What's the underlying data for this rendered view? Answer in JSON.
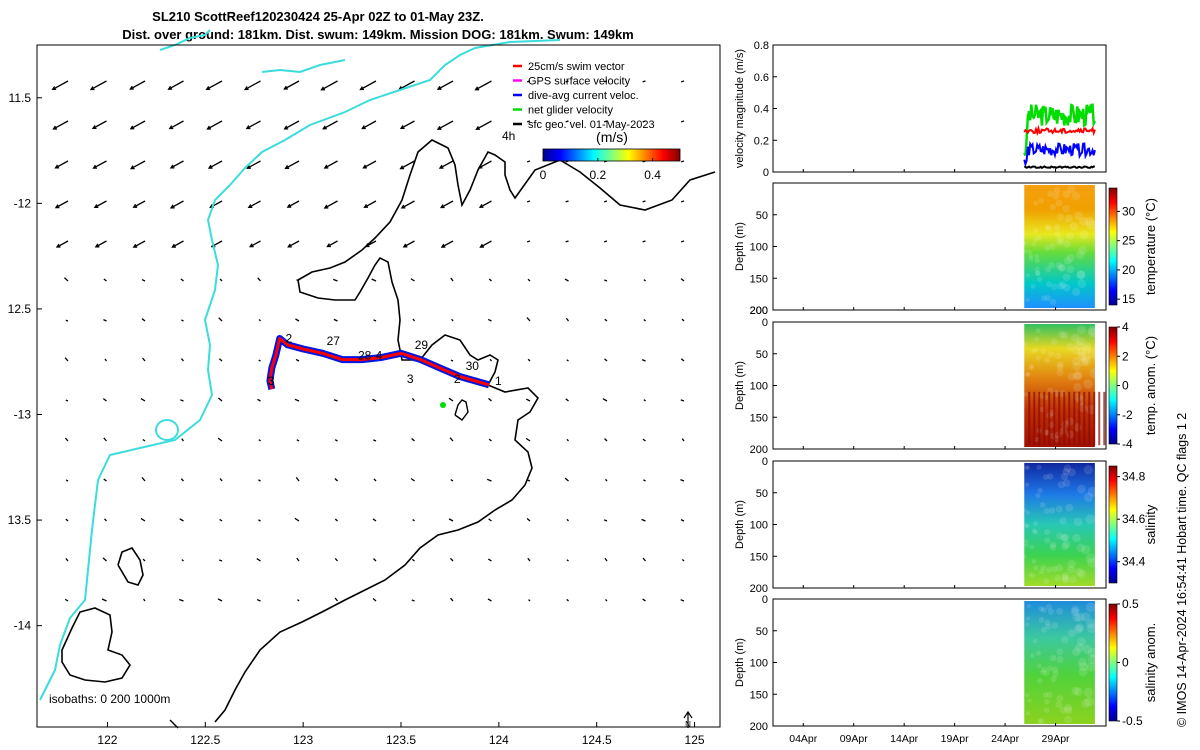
{
  "chart_data": {
    "type": "map_and_timeseries",
    "title_line1": "SL210 ScottReef120230424 25-Apr 02Z to 01-May 23Z.",
    "title_line2": "Dist. over ground: 181km. Dist. swum: 149km. Mission DOG: 181km. Swum: 149km",
    "map": {
      "xlim": [
        121.64,
        125.13
      ],
      "ylim": [
        -14.48,
        -11.25
      ],
      "xticks": [
        122,
        122.5,
        123,
        123.5,
        124,
        124.5,
        125
      ],
      "xtick_labels": [
        "122",
        "122.5",
        "123",
        "123.5",
        "124",
        "124.5",
        "125"
      ],
      "yticks": [
        -11.5,
        -12,
        -12.5,
        -13,
        -13.5,
        -14
      ],
      "ytick_labels": [
        "11.5",
        "-12",
        "12.5",
        "-13",
        "13.5",
        "-14"
      ],
      "legend": [
        {
          "label": "25cm/s swim vector",
          "color": "#ff0000"
        },
        {
          "label": "GPS surface velocity",
          "color": "#ff00ff"
        },
        {
          "label": "dive-avg current veloc.",
          "color": "#0000ff"
        },
        {
          "label": "net glider velocity",
          "color": "#00dd00"
        },
        {
          "label": "sfc geo. vel. 01-May-2023",
          "color": "#000000"
        }
      ],
      "colorbar": {
        "title": "(m/s)",
        "tick_labels": [
          "0",
          "0.2",
          "0.4"
        ],
        "range": [
          0,
          0.5
        ],
        "label_4h": "4h"
      },
      "isobath_note": "isobaths: 0   200  1000m",
      "north_label": "N",
      "track": [
        [
          122.84,
          -12.88
        ],
        [
          122.83,
          -12.84
        ],
        [
          122.84,
          -12.78
        ],
        [
          122.86,
          -12.72
        ],
        [
          122.88,
          -12.64
        ],
        [
          122.92,
          -12.67
        ],
        [
          123.0,
          -12.69
        ],
        [
          123.1,
          -12.71
        ],
        [
          123.2,
          -12.74
        ],
        [
          123.3,
          -12.74
        ],
        [
          123.4,
          -12.73
        ],
        [
          123.5,
          -12.71
        ],
        [
          123.6,
          -12.74
        ],
        [
          123.7,
          -12.78
        ],
        [
          123.8,
          -12.82
        ],
        [
          123.95,
          -12.86
        ]
      ],
      "day_labels": [
        {
          "text": "2",
          "lon": 122.91,
          "lat": -12.66
        },
        {
          "text": "27",
          "lon": 123.12,
          "lat": -12.67
        },
        {
          "text": "28",
          "lon": 123.28,
          "lat": -12.74
        },
        {
          "text": "4",
          "lon": 123.37,
          "lat": -12.74
        },
        {
          "text": "29",
          "lon": 123.57,
          "lat": -12.69
        },
        {
          "text": "30",
          "lon": 123.83,
          "lat": -12.79
        },
        {
          "text": "3",
          "lon": 123.53,
          "lat": -12.85
        },
        {
          "text": "2",
          "lon": 123.77,
          "lat": -12.85
        },
        {
          "text": "1",
          "lon": 123.98,
          "lat": -12.86
        },
        {
          "text": "3",
          "lon": 122.82,
          "lat": -12.86
        }
      ]
    },
    "time_axis": {
      "labels": [
        "04Apr",
        "09Apr",
        "14Apr",
        "19Apr",
        "24Apr",
        "29Apr"
      ],
      "data_start_label": "25Apr",
      "data_end_label": "01May"
    },
    "panels": [
      {
        "ylabel": "velocity magnitude (m/s)",
        "ylim": [
          0,
          0.8
        ],
        "yticks": [
          "0",
          "0.2",
          "0.4",
          "0.6",
          "0.8"
        ],
        "series": [
          {
            "name": "net glider velocity",
            "color": "#00dd00",
            "mean": 0.36
          },
          {
            "name": "dive-avg current veloc.",
            "color": "#0000ff",
            "mean": 0.14
          },
          {
            "name": "swim",
            "color": "#ff0000",
            "mean": 0.26
          },
          {
            "name": "sfc geo.",
            "color": "#000000",
            "mean": 0.03
          }
        ]
      },
      {
        "ylabel": "Depth (m)",
        "cbar_label": "temperature (°C)",
        "yticks": [
          "50",
          "100",
          "150",
          "200"
        ],
        "cbar_ticks": [
          "30",
          "25",
          "20",
          "15"
        ],
        "crange": [
          14,
          34
        ]
      },
      {
        "ylabel": "Depth (m)",
        "cbar_label": "temp. anom. (°C)",
        "yticks": [
          "0",
          "50",
          "100",
          "150",
          "200"
        ],
        "cbar_ticks": [
          "4",
          "2",
          "0",
          "-2",
          "-4"
        ],
        "crange": [
          -4,
          4
        ]
      },
      {
        "ylabel": "Depth (m)",
        "cbar_label": "salinity",
        "yticks": [
          "0",
          "50",
          "100",
          "150",
          "200"
        ],
        "cbar_ticks": [
          "34.8",
          "34.6",
          "34.4"
        ],
        "crange": [
          34.3,
          34.85
        ]
      },
      {
        "ylabel": "Depth (m)",
        "cbar_label": "salinity anom.",
        "yticks": [
          "0",
          "50",
          "100",
          "150",
          "200"
        ],
        "cbar_ticks": [
          "0.5",
          "0",
          "-0.5"
        ],
        "crange": [
          -0.5,
          0.5
        ]
      }
    ],
    "credit": "© IMOS 14-Apr-2024 16:54:41 Hobart time. QC flags 1  2"
  }
}
